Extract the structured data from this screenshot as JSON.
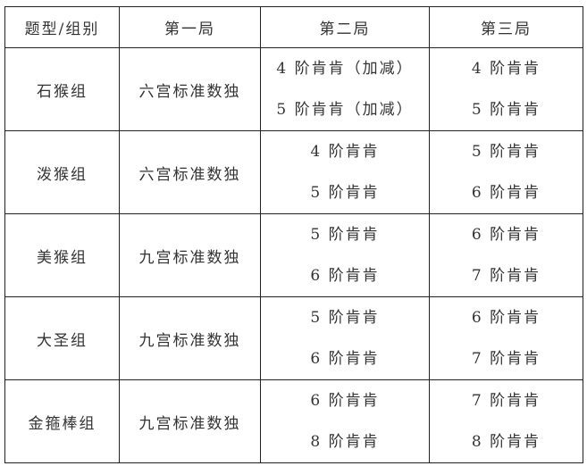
{
  "table": {
    "headers": [
      "题型/组别",
      "第一局",
      "第二局",
      "第三局"
    ],
    "rows": [
      {
        "group": "石猴组",
        "round1": "六宫标准数独",
        "round2": [
          "4 阶肯肯（加减）",
          "5 阶肯肯（加减）"
        ],
        "round3": [
          "4 阶肯肯",
          "5 阶肯肯"
        ]
      },
      {
        "group": "泼猴组",
        "round1": "六宫标准数独",
        "round2": [
          "4 阶肯肯",
          "5 阶肯肯"
        ],
        "round3": [
          "5 阶肯肯",
          "6 阶肯肯"
        ]
      },
      {
        "group": "美猴组",
        "round1": "九宫标准数独",
        "round2": [
          "5 阶肯肯",
          "6 阶肯肯"
        ],
        "round3": [
          "6 阶肯肯",
          "7 阶肯肯"
        ]
      },
      {
        "group": "大圣组",
        "round1": "九宫标准数独",
        "round2": [
          "5 阶肯肯",
          "6 阶肯肯"
        ],
        "round3": [
          "6 阶肯肯",
          "7 阶肯肯"
        ]
      },
      {
        "group": "金箍棒组",
        "round1": "九宫标准数独",
        "round2": [
          "6 阶肯肯",
          "8 阶肯肯"
        ],
        "round3": [
          "7 阶肯肯",
          "8 阶肯肯"
        ]
      }
    ]
  }
}
